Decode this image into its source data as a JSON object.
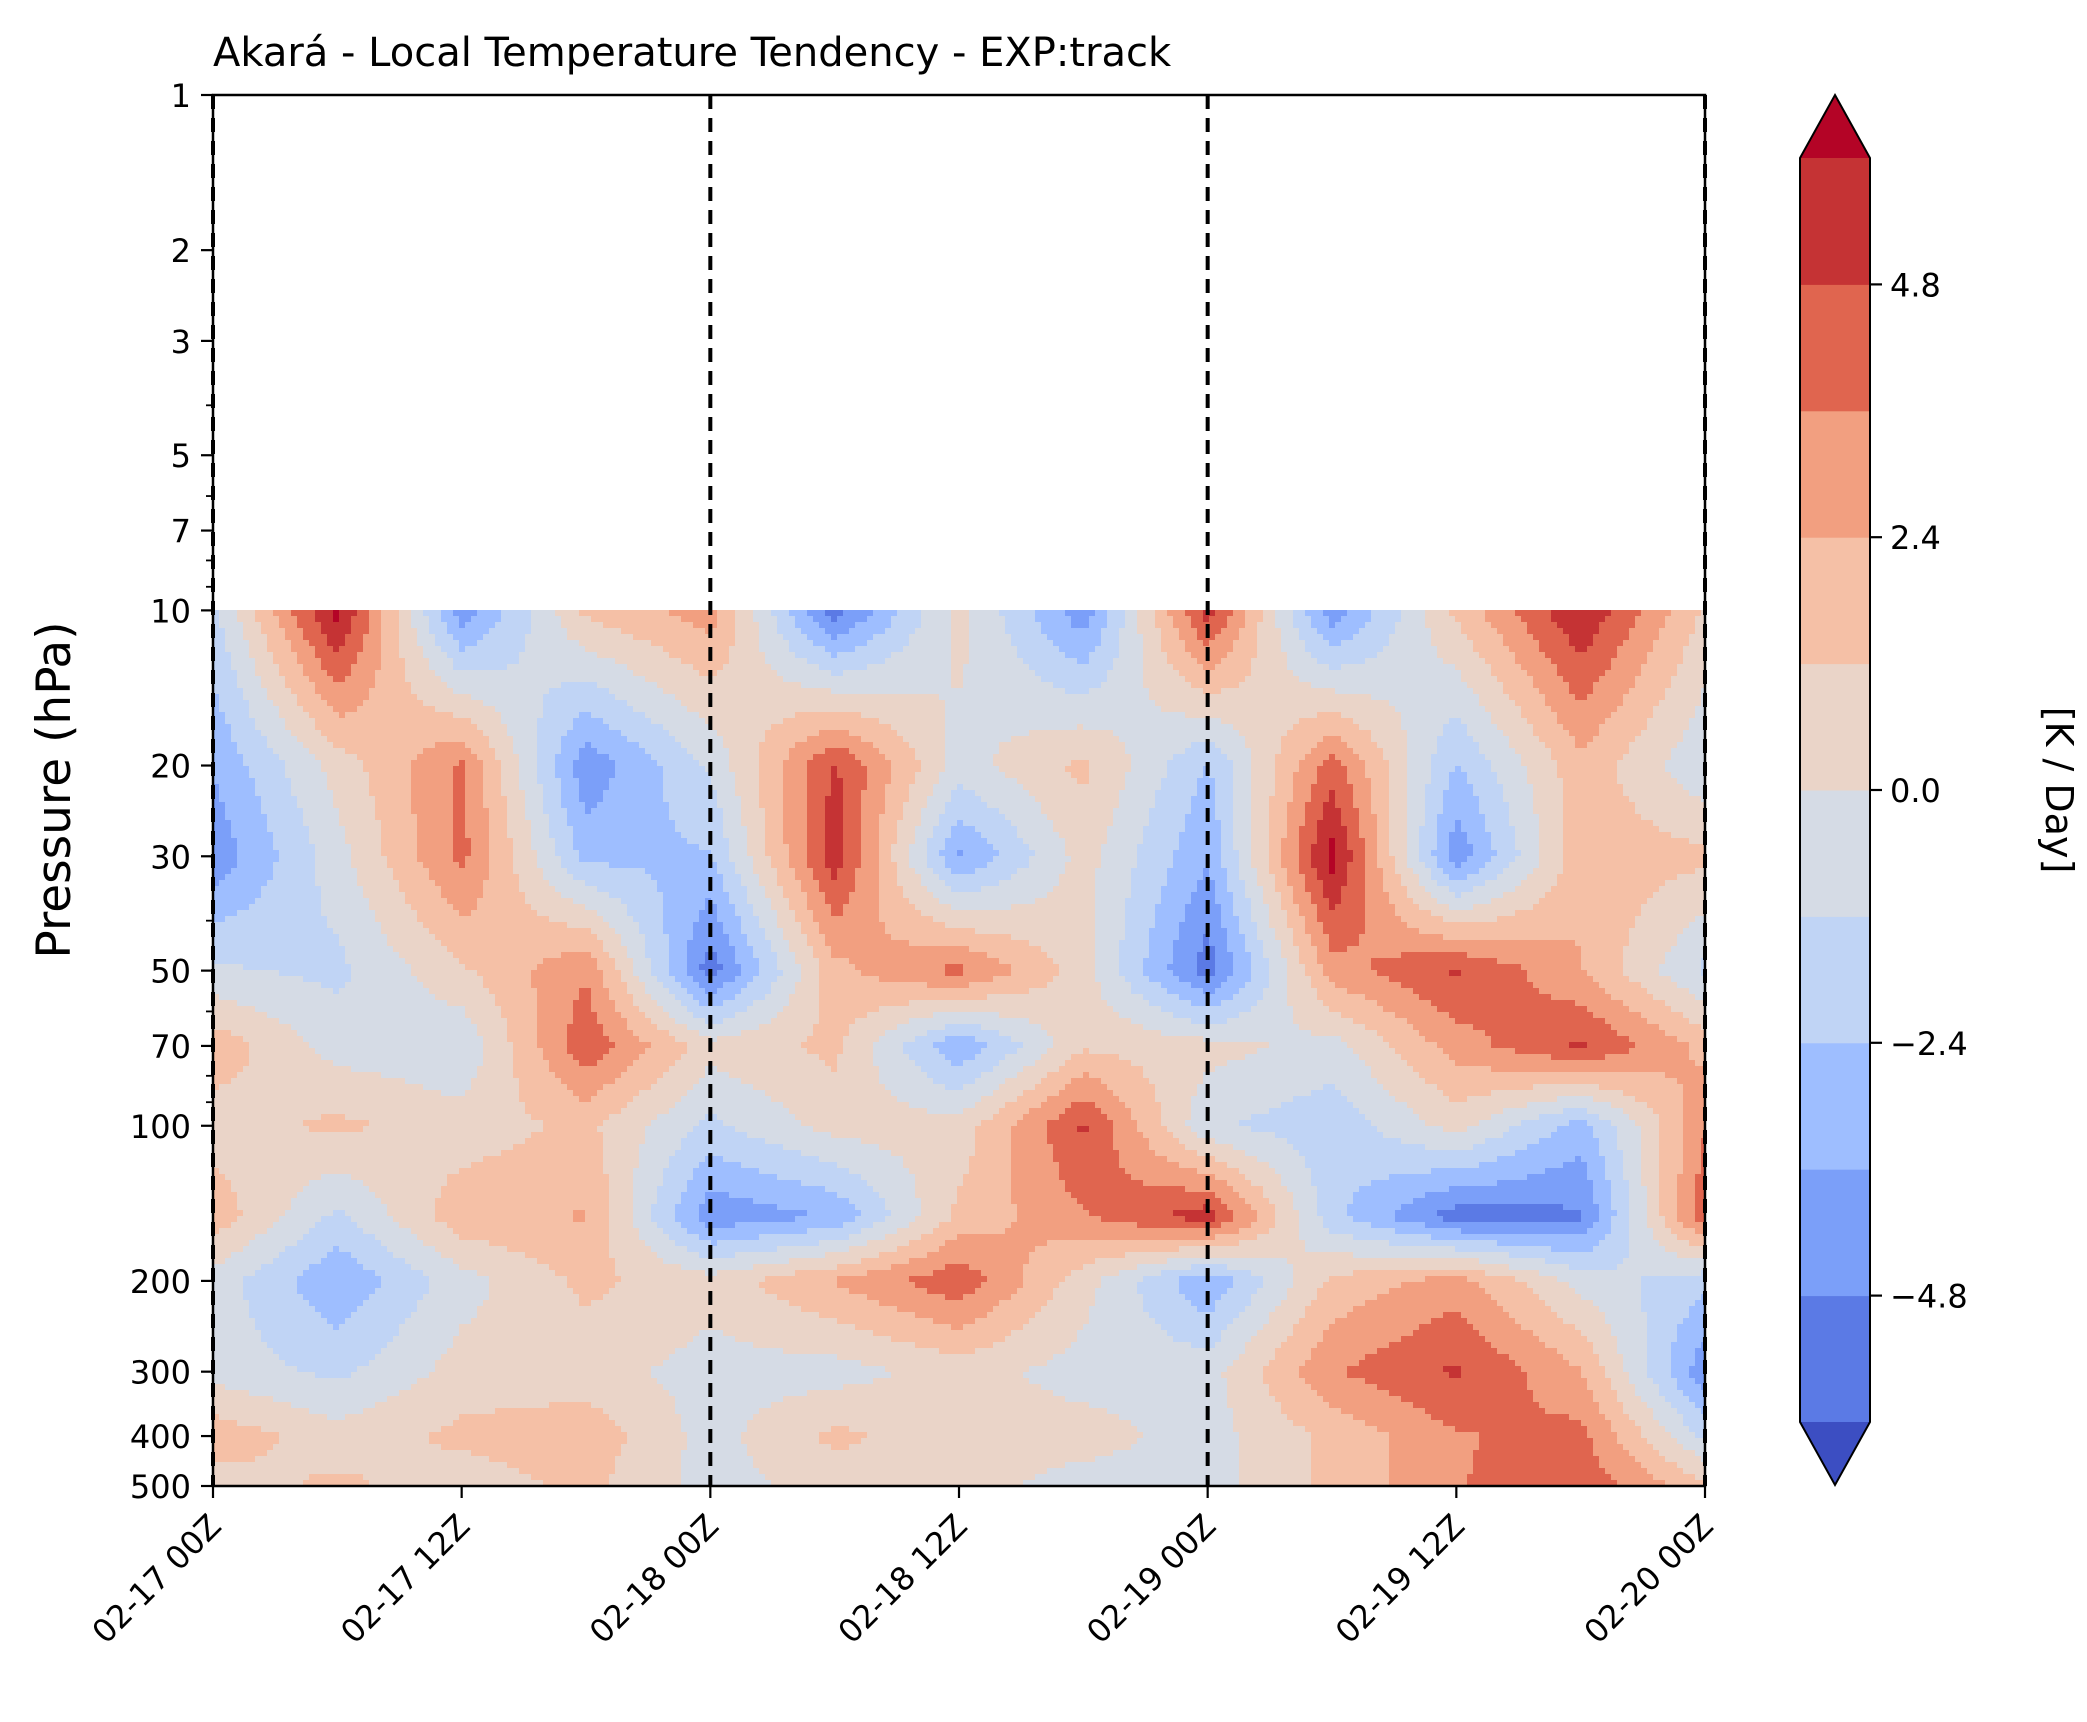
{
  "chart_data": {
    "type": "heatmap",
    "title": "Akará - Local Temperature Tendency - EXP:track",
    "xlabel": "",
    "ylabel": "Pressure (hPa)",
    "y_scale": "log",
    "y_inverted": true,
    "ylim": [
      500,
      1
    ],
    "yticks": [
      1,
      2,
      3,
      5,
      7,
      10,
      20,
      30,
      50,
      70,
      100,
      200,
      300,
      400,
      500
    ],
    "ytick_labels": [
      "1",
      "2",
      "3",
      "5",
      "7",
      "10",
      "20",
      "30",
      "50",
      "70",
      "100",
      "200",
      "300",
      "400",
      "500"
    ],
    "xlim": [
      "2025-02-17 00Z",
      "2025-02-20 00Z"
    ],
    "xticks": [
      0,
      12,
      24,
      36,
      48,
      60,
      72
    ],
    "xtick_labels": [
      "02-17 00Z",
      "02-17 12Z",
      "02-18 00Z",
      "02-18 12Z",
      "02-19 00Z",
      "02-19 12Z",
      "02-20 00Z"
    ],
    "vlines_dashed": [
      0,
      24,
      48,
      72
    ],
    "colorbar": {
      "label": "[K / Day]",
      "levels": [
        -6.0,
        -4.8,
        -3.6,
        -2.4,
        -1.2,
        0.0,
        1.2,
        2.4,
        3.6,
        4.8,
        6.0
      ],
      "ticks": [
        4.8,
        2.4,
        0.0,
        -2.4,
        -4.8
      ],
      "tick_labels": [
        "4.8",
        "2.4",
        "0.0",
        "−2.4",
        "−4.8"
      ],
      "extend": "both",
      "colors": [
        "#3c4ec2",
        "#5b7ae5",
        "#7b9ff9",
        "#9ebeff",
        "#c0d4f5",
        "#d5dbe5",
        "#ead4c8",
        "#f5c0a6",
        "#f29f80",
        "#e0654f",
        "#c53334",
        "#b40426"
      ]
    },
    "x_hours": [
      0,
      6,
      12,
      18,
      24,
      30,
      36,
      42,
      48,
      54,
      60,
      66,
      72
    ],
    "y_levels": [
      10,
      20,
      30,
      50,
      70,
      100,
      150,
      200,
      300,
      400,
      500
    ],
    "z": [
      [
        -1.5,
        6.5,
        -4.5,
        1.5,
        3.0,
        -5.5,
        0.5,
        -4.5,
        5.5,
        -4.5,
        1.5,
        6.0,
        1.0
      ],
      [
        -3.5,
        0.5,
        3.8,
        -4.5,
        -1.0,
        5.0,
        -0.5,
        1.5,
        -2.5,
        4.2,
        -2.5,
        2.0,
        -1.0
      ],
      [
        -4.5,
        -0.5,
        4.0,
        -2.8,
        -2.5,
        5.5,
        -3.8,
        0.5,
        -3.5,
        6.5,
        -4.5,
        2.0,
        1.5
      ],
      [
        -1.0,
        -1.5,
        1.0,
        3.5,
        -5.5,
        2.0,
        4.0,
        0.5,
        -5.5,
        3.0,
        5.0,
        2.5,
        -1.5
      ],
      [
        2.0,
        -0.5,
        -1.0,
        4.5,
        0.5,
        1.5,
        -3.5,
        1.0,
        0.5,
        -0.5,
        3.0,
        5.0,
        2.0
      ],
      [
        0.5,
        1.5,
        0.5,
        1.5,
        -1.5,
        0.5,
        0.5,
        5.0,
        -1.0,
        -2.0,
        0.5,
        -3.0,
        3.5
      ],
      [
        2.0,
        -1.5,
        2.0,
        2.5,
        -4.5,
        -3.5,
        1.5,
        3.5,
        5.5,
        -2.0,
        -5.5,
        -5.0,
        4.5
      ],
      [
        -0.5,
        -3.5,
        -0.5,
        1.5,
        0.5,
        2.5,
        4.5,
        0.5,
        -3.5,
        1.5,
        3.0,
        -0.5,
        -2.0
      ],
      [
        -0.5,
        -1.5,
        0.5,
        0.5,
        -0.5,
        -0.5,
        0.5,
        -0.5,
        -0.5,
        3.5,
        5.0,
        2.5,
        -4.5
      ],
      [
        2.0,
        0.5,
        1.5,
        2.0,
        -0.5,
        1.5,
        0.5,
        0.5,
        -0.5,
        1.5,
        3.5,
        4.0,
        -1.5
      ],
      [
        0.5,
        1.5,
        0.5,
        1.5,
        -0.5,
        0.5,
        0.5,
        -0.5,
        -0.5,
        1.5,
        3.5,
        4.5,
        1.5
      ]
    ]
  }
}
